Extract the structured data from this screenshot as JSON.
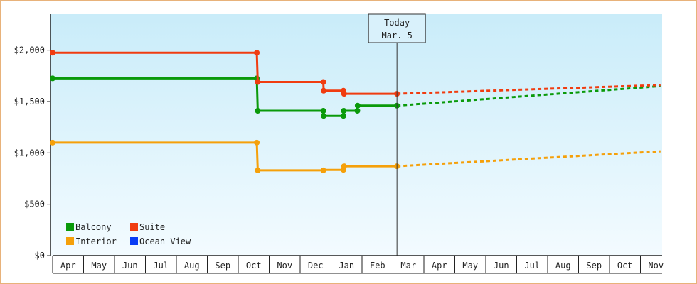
{
  "chart_data": {
    "type": "line",
    "title": "",
    "xlabel": "",
    "ylabel": "",
    "ylim": [
      0,
      2350
    ],
    "yticks": [
      {
        "value": 0,
        "label": "$0"
      },
      {
        "value": 500,
        "label": "$500"
      },
      {
        "value": 1000,
        "label": "$1,000"
      },
      {
        "value": 1500,
        "label": "$1,500"
      },
      {
        "value": 2000,
        "label": "$2,000"
      }
    ],
    "months": [
      "Apr",
      "May",
      "Jun",
      "Jul",
      "Aug",
      "Sep",
      "Oct",
      "Nov",
      "Dec",
      "Jan",
      "Feb",
      "Mar",
      "Apr",
      "May",
      "Jun",
      "Jul",
      "Aug",
      "Sep",
      "Oct",
      "Nov"
    ],
    "today": {
      "line1": "Today",
      "line2": "Mar. 5",
      "t": 11.13
    },
    "series": [
      {
        "name": "Balcony",
        "color": "#0a9a0a",
        "points": [
          [
            0,
            1725
          ],
          [
            6.6,
            1725
          ],
          [
            6.63,
            1410
          ],
          [
            8.75,
            1410
          ],
          [
            8.76,
            1360
          ],
          [
            9.4,
            1360
          ],
          [
            9.41,
            1410
          ],
          [
            9.85,
            1410
          ],
          [
            9.86,
            1460
          ],
          [
            11.13,
            1460
          ]
        ],
        "markers": [
          [
            0,
            1725
          ],
          [
            6.6,
            1725
          ],
          [
            6.63,
            1410
          ],
          [
            8.75,
            1410
          ],
          [
            8.76,
            1360
          ],
          [
            9.4,
            1360
          ],
          [
            9.41,
            1410
          ],
          [
            9.85,
            1410
          ],
          [
            9.86,
            1460
          ],
          [
            11.13,
            1460
          ]
        ],
        "forecast": [
          [
            11.13,
            1460
          ],
          [
            19.65,
            1650
          ]
        ]
      },
      {
        "name": "Suite",
        "color": "#f03c10",
        "points": [
          [
            0,
            1975
          ],
          [
            6.6,
            1975
          ],
          [
            6.63,
            1690
          ],
          [
            8.75,
            1690
          ],
          [
            8.76,
            1605
          ],
          [
            9.4,
            1605
          ],
          [
            9.42,
            1575
          ],
          [
            11.13,
            1575
          ]
        ],
        "markers": [
          [
            0,
            1975
          ],
          [
            6.6,
            1975
          ],
          [
            6.63,
            1690
          ],
          [
            8.75,
            1690
          ],
          [
            8.76,
            1605
          ],
          [
            9.4,
            1605
          ],
          [
            9.42,
            1575
          ],
          [
            11.13,
            1575
          ]
        ],
        "forecast": [
          [
            11.13,
            1575
          ],
          [
            19.65,
            1660
          ]
        ]
      },
      {
        "name": "Interior",
        "color": "#f5a00a",
        "points": [
          [
            0,
            1100
          ],
          [
            6.6,
            1100
          ],
          [
            6.63,
            830
          ],
          [
            8.75,
            830
          ],
          [
            8.76,
            835
          ],
          [
            9.4,
            835
          ],
          [
            9.42,
            870
          ],
          [
            11.13,
            870
          ]
        ],
        "markers": [
          [
            0,
            1100
          ],
          [
            6.6,
            1100
          ],
          [
            6.63,
            830
          ],
          [
            8.75,
            830
          ],
          [
            9.4,
            835
          ],
          [
            9.42,
            870
          ],
          [
            11.13,
            870
          ]
        ],
        "forecast": [
          [
            11.13,
            870
          ],
          [
            19.65,
            1015
          ]
        ]
      },
      {
        "name": "Ocean View",
        "color": "#0a3cf5",
        "points": [],
        "markers": [],
        "forecast": []
      }
    ],
    "grid": false,
    "legend": "bottom-left"
  }
}
